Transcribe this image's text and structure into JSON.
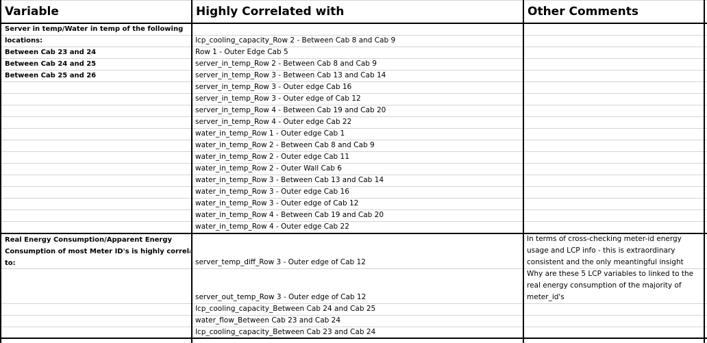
{
  "headers": {
    "variable": "Variable",
    "correlated": "Highly Correlated with",
    "comments": "Other Comments"
  },
  "section1": {
    "variable_lines": [
      "Server in temp/Water in temp of the following",
      "locations:",
      "Between Cab 23 and 24",
      "Between Cab 24 and 25",
      "Between Cab 25 and 26"
    ],
    "correlated": [
      "lcp_cooling_capacity_Row 2 - Between Cab 8 and Cab 9",
      "Row 1 - Outer Edge Cab 5",
      "server_in_temp_Row 2 - Between Cab 8 and Cab 9",
      "server_in_temp_Row 3 - Between Cab 13 and Cab 14",
      "server_in_temp_Row 3 - Outer edge Cab 16",
      "server_in_temp_Row 3 - Outer edge of Cab 12",
      "server_in_temp_Row 4 - Between Cab 19 and Cab 20",
      "server_in_temp_Row 4 - Outer edge Cab 22",
      "water_in_temp_Row 1 - Outer edge Cab 1",
      "water_in_temp_Row 2 - Between Cab 8 and Cab 9",
      "water_in_temp_Row 2 - Outer edge Cab 11",
      "water_in_temp_Row 2 - Outer Wall Cab 6",
      "water_in_temp_Row 3 - Between Cab 13 and Cab 14",
      "water_in_temp_Row 3 - Outer edge Cab 16",
      "water_in_temp_Row 3 - Outer edge of Cab 12",
      "water_in_temp_Row 4 - Between Cab 19 and Cab 20",
      "water_in_temp_Row 4 - Outer edge Cab 22"
    ]
  },
  "section2": {
    "variable_lines": [
      "Real Energy Consumption/Apparent Energy",
      "Consumption of most Meter ID's is highly correlated",
      "to:"
    ],
    "correlated": [
      "server_temp_diff_Row 3 - Outer edge of Cab 12",
      "server_out_temp_Row 3 - Outer edge of Cab 12",
      "lcp_cooling_capacity_Between Cab 24 and Cab 25",
      "water_flow_Between Cab 23 and Cab 24",
      "lcp_cooling_capacity_Between Cab 23 and Cab 24"
    ],
    "comment1_lines": [
      "In terms of cross-checking meter-id energy",
      "usage and LCP info - this is extraordinary",
      "consistent and the only meantingful insight"
    ],
    "comment2_lines": [
      "Why are these 5 LCP variables to linked to the",
      "real energy consumption of the majority of",
      "meter_id's"
    ]
  }
}
